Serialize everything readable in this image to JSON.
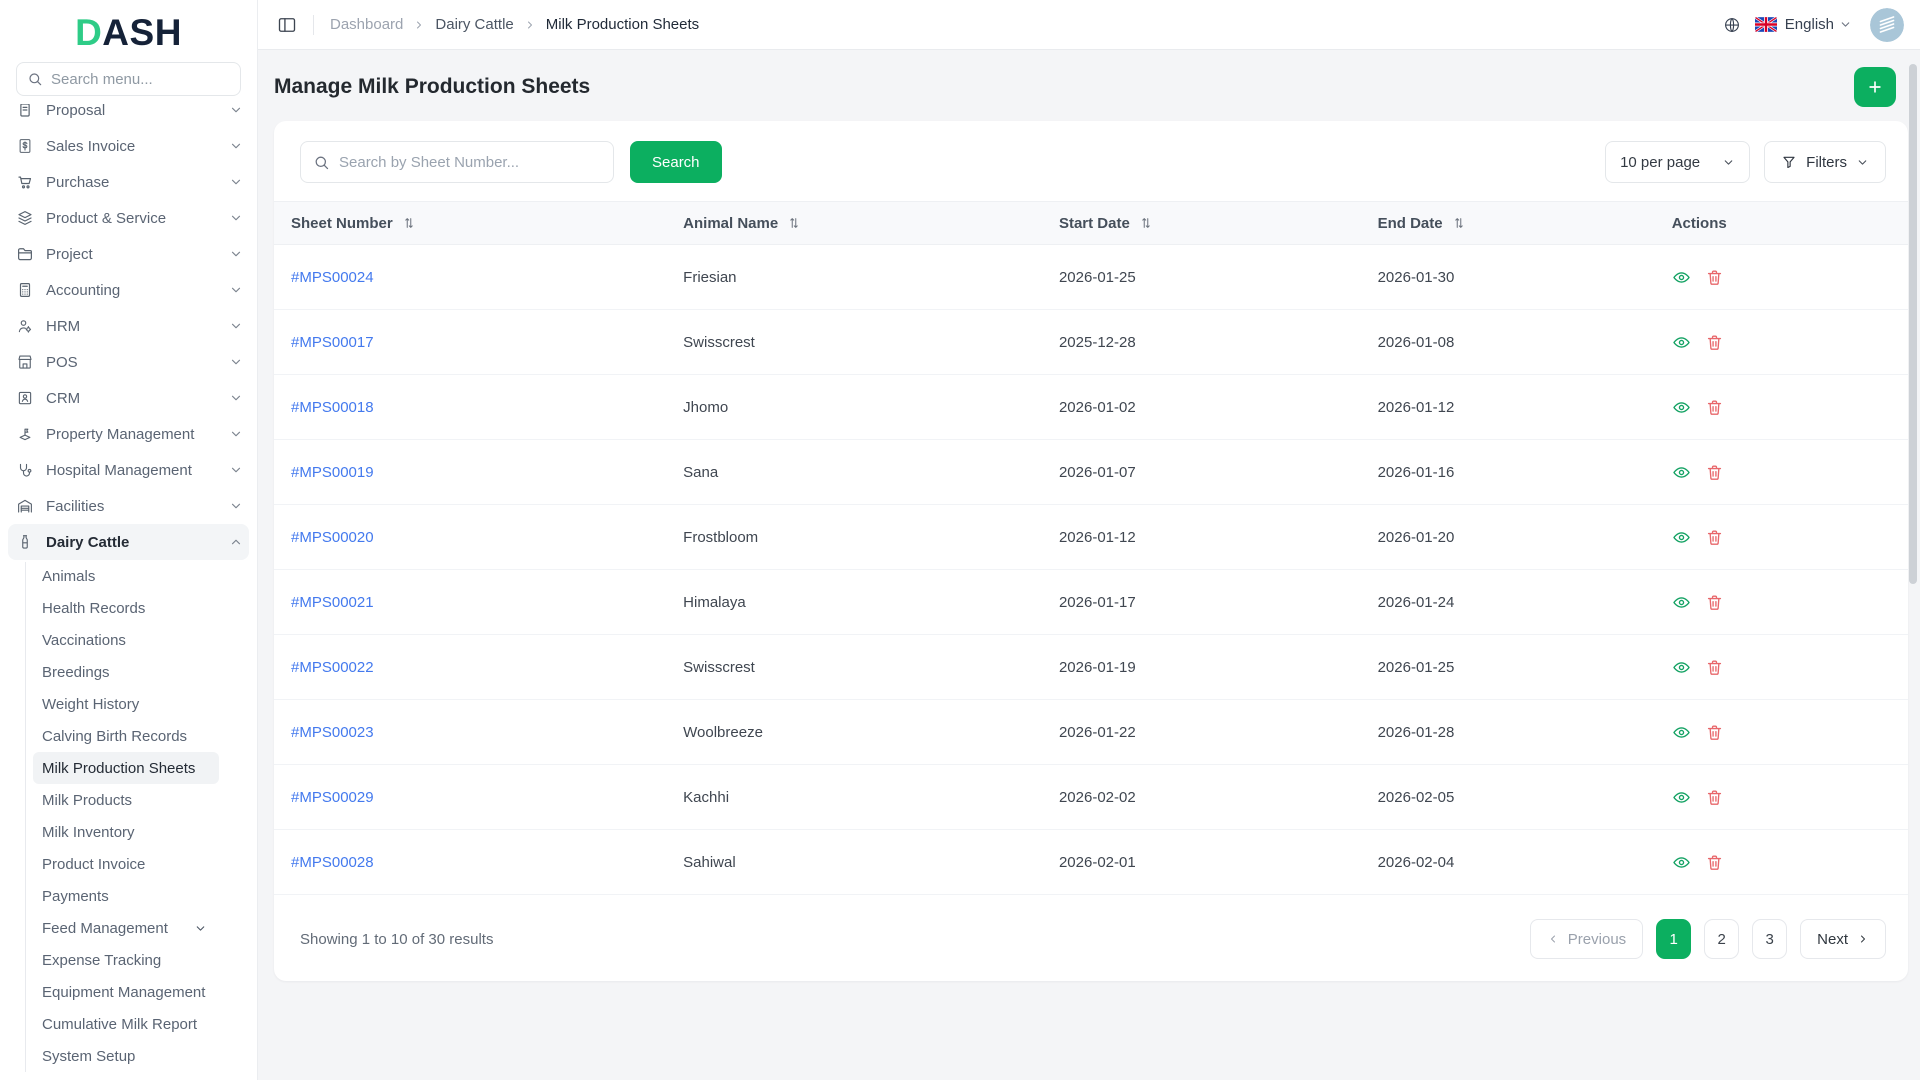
{
  "brand": {
    "logo_d": "D",
    "logo_rest": "ASH"
  },
  "colors": {
    "primary_green": "#0CAF60",
    "link_blue": "#4379EE",
    "danger_red": "#E8676B",
    "avatar_bg": "#A9C6D8"
  },
  "sidebar": {
    "search_placeholder": "Search menu...",
    "menu": [
      {
        "label": "Proposal",
        "icon": "proposal-icon",
        "chevron": "down"
      },
      {
        "label": "Sales Invoice",
        "icon": "sales-invoice-icon",
        "chevron": "down"
      },
      {
        "label": "Purchase",
        "icon": "purchase-icon",
        "chevron": "down"
      },
      {
        "label": "Product & Service",
        "icon": "product-service-icon",
        "chevron": "down"
      },
      {
        "label": "Project",
        "icon": "project-icon",
        "chevron": "down"
      },
      {
        "label": "Accounting",
        "icon": "accounting-icon",
        "chevron": "down"
      },
      {
        "label": "HRM",
        "icon": "hrm-icon",
        "chevron": "down"
      },
      {
        "label": "POS",
        "icon": "pos-icon",
        "chevron": "down"
      },
      {
        "label": "CRM",
        "icon": "crm-icon",
        "chevron": "down"
      },
      {
        "label": "Property Management",
        "icon": "property-management-icon",
        "chevron": "down"
      },
      {
        "label": "Hospital Management",
        "icon": "hospital-management-icon",
        "chevron": "down"
      },
      {
        "label": "Facilities",
        "icon": "facilities-icon",
        "chevron": "down"
      },
      {
        "label": "Dairy Cattle",
        "icon": "dairy-cattle-icon",
        "chevron": "up",
        "active": true
      }
    ],
    "submenu": [
      {
        "label": "Animals"
      },
      {
        "label": "Health Records"
      },
      {
        "label": "Vaccinations"
      },
      {
        "label": "Breedings"
      },
      {
        "label": "Weight History"
      },
      {
        "label": "Calving Birth Records"
      },
      {
        "label": "Milk Production Sheets",
        "active": true
      },
      {
        "label": "Milk Products"
      },
      {
        "label": "Milk Inventory"
      },
      {
        "label": "Product Invoice"
      },
      {
        "label": "Payments"
      },
      {
        "label": "Feed Management",
        "chevron": "down"
      },
      {
        "label": "Expense Tracking"
      },
      {
        "label": "Equipment Management"
      },
      {
        "label": "Cumulative Milk Report"
      },
      {
        "label": "System Setup"
      }
    ]
  },
  "header": {
    "breadcrumb": [
      "Dashboard",
      "Dairy Cattle",
      "Milk Production Sheets"
    ],
    "language": "English"
  },
  "page": {
    "title": "Manage Milk Production Sheets"
  },
  "toolbar": {
    "search_placeholder": "Search by Sheet Number...",
    "search_button": "Search",
    "per_page": "10 per page",
    "filters_label": "Filters"
  },
  "table": {
    "columns": [
      {
        "label": "Sheet Number",
        "sortable": true
      },
      {
        "label": "Animal Name",
        "sortable": true
      },
      {
        "label": "Start Date",
        "sortable": true
      },
      {
        "label": "End Date",
        "sortable": true
      },
      {
        "label": "Actions",
        "sortable": false
      }
    ],
    "rows": [
      {
        "sheet_number": "#MPS00024",
        "animal_name": "Friesian",
        "start_date": "2026-01-25",
        "end_date": "2026-01-30"
      },
      {
        "sheet_number": "#MPS00017",
        "animal_name": "Swisscrest",
        "start_date": "2025-12-28",
        "end_date": "2026-01-08"
      },
      {
        "sheet_number": "#MPS00018",
        "animal_name": "Jhomo",
        "start_date": "2026-01-02",
        "end_date": "2026-01-12"
      },
      {
        "sheet_number": "#MPS00019",
        "animal_name": "Sana",
        "start_date": "2026-01-07",
        "end_date": "2026-01-16"
      },
      {
        "sheet_number": "#MPS00020",
        "animal_name": "Frostbloom",
        "start_date": "2026-01-12",
        "end_date": "2026-01-20"
      },
      {
        "sheet_number": "#MPS00021",
        "animal_name": "Himalaya",
        "start_date": "2026-01-17",
        "end_date": "2026-01-24"
      },
      {
        "sheet_number": "#MPS00022",
        "animal_name": "Swisscrest",
        "start_date": "2026-01-19",
        "end_date": "2026-01-25"
      },
      {
        "sheet_number": "#MPS00023",
        "animal_name": "Woolbreeze",
        "start_date": "2026-01-22",
        "end_date": "2026-01-28"
      },
      {
        "sheet_number": "#MPS00029",
        "animal_name": "Kachhi",
        "start_date": "2026-02-02",
        "end_date": "2026-02-05"
      },
      {
        "sheet_number": "#MPS00028",
        "animal_name": "Sahiwal",
        "start_date": "2026-02-01",
        "end_date": "2026-02-04"
      }
    ]
  },
  "pagination": {
    "summary": "Showing 1 to 10 of 30 results",
    "previous_label": "Previous",
    "next_label": "Next",
    "pages": [
      "1",
      "2",
      "3"
    ],
    "active_page": "1"
  }
}
